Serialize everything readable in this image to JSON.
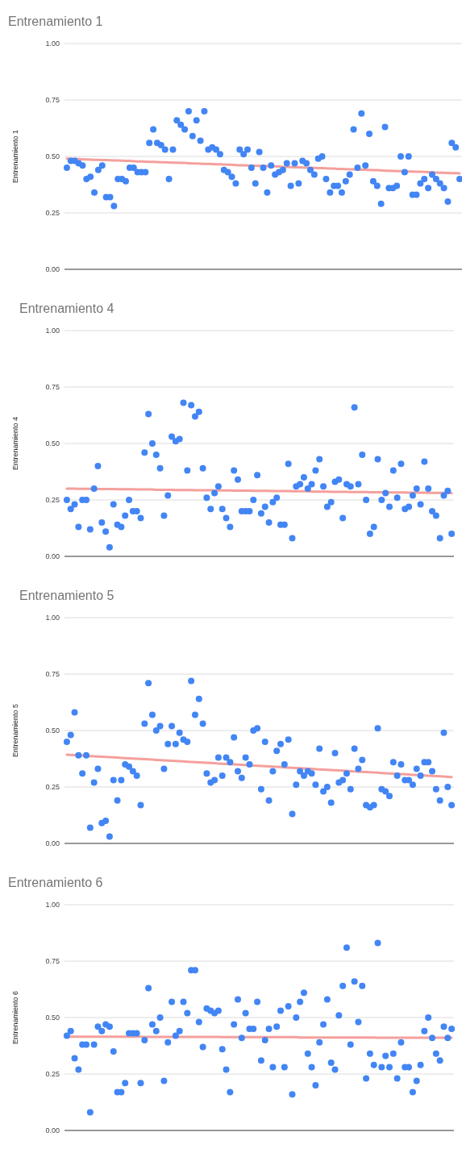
{
  "chart_data": [
    {
      "type": "scatter",
      "title": "Entrenamiento 1",
      "ylabel": "Entrenamiento 1",
      "ylim": [
        0,
        1
      ],
      "yticks": [
        {
          "value": 0,
          "label": "0.00"
        },
        {
          "value": 0.25,
          "label": "0.25"
        },
        {
          "value": 0.5,
          "label": "0.50"
        },
        {
          "value": 0.75,
          "label": "0.75"
        },
        {
          "value": 1,
          "label": "1.00"
        }
      ],
      "grid": "y",
      "tick_labels": "y",
      "marker": "circle",
      "categories": [
        null,
        null,
        null,
        null,
        null,
        null,
        null,
        null,
        null,
        null,
        null,
        null,
        null,
        null,
        null,
        null,
        null,
        null,
        null,
        null,
        null,
        null,
        null,
        null,
        null,
        null,
        null,
        null,
        null,
        null,
        null,
        null,
        null,
        null,
        null,
        null,
        null,
        null,
        null,
        null,
        null,
        null,
        null,
        null,
        null,
        null,
        null,
        null,
        null,
        null,
        null,
        null,
        null,
        null,
        null,
        null,
        null,
        null,
        null,
        null,
        null,
        null,
        null,
        null,
        null,
        null,
        null,
        null,
        null,
        null,
        null,
        null,
        null,
        null,
        null,
        null,
        null,
        null,
        null,
        null,
        null,
        null,
        null,
        null,
        null,
        null,
        null,
        null,
        null,
        null,
        null,
        null,
        null,
        null,
        null,
        null,
        null,
        null,
        null,
        null,
        null
      ],
      "series": [
        {
          "type": "line",
          "color": "#f4a09c",
          "marker": "none",
          "values": [
            0.49,
            0.489,
            0.489,
            0.488,
            0.487,
            0.487,
            0.486,
            0.485,
            0.485,
            0.484,
            0.484,
            0.483,
            0.482,
            0.482,
            0.481,
            0.48,
            0.48,
            0.479,
            0.478,
            0.478,
            0.477,
            0.476,
            0.476,
            0.475,
            0.474,
            0.474,
            0.473,
            0.472,
            0.472,
            0.471,
            0.471,
            0.47,
            0.469,
            0.469,
            0.468,
            0.467,
            0.467,
            0.466,
            0.465,
            0.465,
            0.464,
            0.463,
            0.463,
            0.462,
            0.461,
            0.461,
            0.46,
            0.459,
            0.459,
            0.458,
            0.458,
            0.457,
            0.456,
            0.456,
            0.455,
            0.454,
            0.454,
            0.453,
            0.452,
            0.452,
            0.451,
            0.45,
            0.45,
            0.449,
            0.448,
            0.448,
            0.447,
            0.446,
            0.446,
            0.445,
            0.445,
            0.444,
            0.443,
            0.443,
            0.442,
            0.441,
            0.441,
            0.44,
            0.439,
            0.439,
            0.438,
            0.437,
            0.437,
            0.436,
            0.435,
            0.435,
            0.434,
            0.433,
            0.433,
            0.432,
            0.432,
            0.431,
            0.43,
            0.43,
            0.429,
            0.428,
            0.428,
            0.427,
            0.426,
            0.426,
            0.425
          ]
        },
        {
          "type": "scatter",
          "color": "#4285f4",
          "values": [
            0.45,
            0.48,
            0.48,
            0.47,
            0.46,
            0.4,
            0.41,
            0.34,
            0.44,
            0.46,
            0.32,
            0.32,
            0.28,
            0.4,
            0.4,
            0.39,
            0.45,
            0.45,
            0.43,
            0.43,
            0.43,
            0.56,
            0.62,
            0.56,
            0.55,
            0.53,
            0.4,
            0.53,
            0.66,
            0.64,
            0.62,
            0.7,
            0.59,
            0.66,
            0.57,
            0.7,
            0.53,
            0.54,
            0.53,
            0.51,
            0.44,
            0.43,
            0.41,
            0.38,
            0.53,
            0.51,
            0.53,
            0.45,
            0.38,
            0.52,
            0.45,
            0.34,
            0.46,
            0.42,
            0.43,
            0.44,
            0.47,
            0.37,
            0.47,
            0.38,
            0.48,
            0.47,
            0.44,
            0.42,
            0.49,
            0.5,
            0.4,
            0.34,
            0.37,
            0.37,
            0.34,
            0.39,
            0.42,
            0.62,
            0.45,
            0.69,
            0.46,
            0.6,
            0.39,
            0.37,
            0.29,
            0.63,
            0.36,
            0.36,
            0.37,
            0.5,
            0.43,
            0.5,
            0.33,
            0.33,
            0.38,
            0.4,
            0.36,
            0.42,
            0.4,
            0.38,
            0.36,
            0.3,
            0.56,
            0.54,
            0.4
          ]
        }
      ]
    },
    {
      "type": "scatter",
      "title": "Entrenamiento 4",
      "ylabel": "Entrenamiento 4",
      "ylim": [
        0,
        1
      ],
      "yticks": [
        {
          "value": 0,
          "label": "0.00"
        },
        {
          "value": 0.25,
          "label": "0.25"
        },
        {
          "value": 0.5,
          "label": "0.50"
        },
        {
          "value": 0.75,
          "label": "0.75"
        },
        {
          "value": 1,
          "label": "1.00"
        }
      ],
      "grid": "y",
      "tick_labels": "y",
      "marker": "circle",
      "categories": [
        null,
        null,
        null,
        null,
        null,
        null,
        null,
        null,
        null,
        null,
        null,
        null,
        null,
        null,
        null,
        null,
        null,
        null,
        null,
        null,
        null,
        null,
        null,
        null,
        null,
        null,
        null,
        null,
        null,
        null,
        null,
        null,
        null,
        null,
        null,
        null,
        null,
        null,
        null,
        null,
        null,
        null,
        null,
        null,
        null,
        null,
        null,
        null,
        null,
        null,
        null,
        null,
        null,
        null,
        null,
        null,
        null,
        null,
        null,
        null,
        null,
        null,
        null,
        null,
        null,
        null,
        null,
        null,
        null,
        null,
        null,
        null,
        null,
        null,
        null,
        null,
        null,
        null,
        null,
        null,
        null,
        null,
        null,
        null,
        null,
        null,
        null,
        null,
        null,
        null,
        null,
        null,
        null,
        null,
        null,
        null,
        null,
        null,
        null,
        null
      ],
      "series": [
        {
          "type": "line",
          "color": "#f4a09c",
          "marker": "none",
          "values": [
            0.3,
            0.3,
            0.3,
            0.299,
            0.299,
            0.299,
            0.299,
            0.299,
            0.298,
            0.298,
            0.298,
            0.298,
            0.298,
            0.297,
            0.297,
            0.297,
            0.297,
            0.297,
            0.296,
            0.296,
            0.296,
            0.296,
            0.296,
            0.295,
            0.295,
            0.295,
            0.295,
            0.295,
            0.294,
            0.294,
            0.294,
            0.294,
            0.294,
            0.293,
            0.293,
            0.293,
            0.293,
            0.293,
            0.292,
            0.292,
            0.292,
            0.292,
            0.292,
            0.291,
            0.291,
            0.291,
            0.291,
            0.291,
            0.29,
            0.29,
            0.29,
            0.29,
            0.29,
            0.289,
            0.289,
            0.289,
            0.289,
            0.289,
            0.288,
            0.288,
            0.288,
            0.288,
            0.288,
            0.287,
            0.287,
            0.287,
            0.287,
            0.287,
            0.286,
            0.286,
            0.286,
            0.286,
            0.286,
            0.285,
            0.285,
            0.285,
            0.285,
            0.285,
            0.284,
            0.284,
            0.284,
            0.284,
            0.284,
            0.283,
            0.283,
            0.283,
            0.283,
            0.283,
            0.282,
            0.282,
            0.282,
            0.282,
            0.282,
            0.281,
            0.281,
            0.281,
            0.281,
            0.281,
            0.28,
            0.28
          ]
        },
        {
          "type": "scatter",
          "color": "#4285f4",
          "values": [
            0.25,
            0.21,
            0.23,
            0.13,
            0.25,
            0.25,
            0.12,
            0.3,
            0.4,
            0.15,
            0.11,
            0.04,
            0.23,
            0.14,
            0.13,
            0.18,
            0.25,
            0.2,
            0.2,
            0.17,
            0.46,
            0.63,
            0.5,
            0.45,
            0.39,
            0.18,
            0.27,
            0.53,
            0.51,
            0.52,
            0.68,
            0.38,
            0.67,
            0.62,
            0.64,
            0.39,
            0.26,
            0.21,
            0.28,
            0.31,
            0.21,
            0.17,
            0.13,
            0.38,
            0.34,
            0.2,
            0.2,
            0.2,
            0.25,
            0.36,
            0.19,
            0.22,
            0.15,
            0.24,
            0.26,
            0.14,
            0.14,
            0.41,
            0.08,
            0.31,
            0.32,
            0.35,
            0.3,
            0.32,
            0.38,
            0.43,
            0.31,
            0.22,
            0.24,
            0.33,
            0.34,
            0.17,
            0.32,
            0.31,
            0.66,
            0.32,
            0.45,
            0.25,
            0.1,
            0.13,
            0.43,
            0.25,
            0.28,
            0.22,
            0.38,
            0.26,
            0.41,
            0.21,
            0.22,
            0.27,
            0.3,
            0.23,
            0.42,
            0.3,
            0.2,
            0.18,
            0.08,
            0.27,
            0.29,
            0.1
          ]
        }
      ]
    },
    {
      "type": "scatter",
      "title": "Entrenamiento 5",
      "ylabel": "Entrenamiento 5",
      "ylim": [
        0,
        1
      ],
      "yticks": [
        {
          "value": 0,
          "label": "0.00"
        },
        {
          "value": 0.25,
          "label": "0.25"
        },
        {
          "value": 0.5,
          "label": "0.50"
        },
        {
          "value": 0.75,
          "label": "0.75"
        },
        {
          "value": 1,
          "label": "1.00"
        }
      ],
      "grid": "y",
      "tick_labels": "y",
      "marker": "circle",
      "categories": [
        null,
        null,
        null,
        null,
        null,
        null,
        null,
        null,
        null,
        null,
        null,
        null,
        null,
        null,
        null,
        null,
        null,
        null,
        null,
        null,
        null,
        null,
        null,
        null,
        null,
        null,
        null,
        null,
        null,
        null,
        null,
        null,
        null,
        null,
        null,
        null,
        null,
        null,
        null,
        null,
        null,
        null,
        null,
        null,
        null,
        null,
        null,
        null,
        null,
        null,
        null,
        null,
        null,
        null,
        null,
        null,
        null,
        null,
        null,
        null,
        null,
        null,
        null,
        null,
        null,
        null,
        null,
        null,
        null,
        null,
        null,
        null,
        null,
        null,
        null,
        null,
        null,
        null,
        null,
        null,
        null,
        null,
        null,
        null,
        null,
        null,
        null,
        null,
        null,
        null,
        null,
        null,
        null,
        null,
        null,
        null,
        null,
        null,
        null,
        null
      ],
      "series": [
        {
          "type": "line",
          "color": "#f4a09c",
          "marker": "none",
          "values": [
            0.393,
            0.392,
            0.391,
            0.39,
            0.389,
            0.388,
            0.387,
            0.386,
            0.385,
            0.384,
            0.383,
            0.382,
            0.381,
            0.38,
            0.379,
            0.378,
            0.377,
            0.376,
            0.375,
            0.374,
            0.373,
            0.372,
            0.371,
            0.37,
            0.369,
            0.368,
            0.367,
            0.366,
            0.365,
            0.364,
            0.363,
            0.362,
            0.361,
            0.36,
            0.359,
            0.358,
            0.357,
            0.356,
            0.355,
            0.354,
            0.353,
            0.352,
            0.351,
            0.35,
            0.349,
            0.348,
            0.347,
            0.346,
            0.345,
            0.344,
            0.343,
            0.342,
            0.341,
            0.34,
            0.339,
            0.338,
            0.337,
            0.336,
            0.335,
            0.334,
            0.333,
            0.332,
            0.331,
            0.33,
            0.329,
            0.328,
            0.327,
            0.326,
            0.325,
            0.324,
            0.323,
            0.322,
            0.321,
            0.32,
            0.319,
            0.318,
            0.317,
            0.316,
            0.315,
            0.314,
            0.313,
            0.312,
            0.311,
            0.31,
            0.309,
            0.308,
            0.307,
            0.306,
            0.305,
            0.304,
            0.303,
            0.302,
            0.301,
            0.3,
            0.299,
            0.298,
            0.297,
            0.296,
            0.295,
            0.294
          ]
        },
        {
          "type": "scatter",
          "color": "#4285f4",
          "values": [
            0.45,
            0.48,
            0.58,
            0.39,
            0.31,
            0.39,
            0.07,
            0.27,
            0.33,
            0.09,
            0.1,
            0.03,
            0.28,
            0.19,
            0.28,
            0.35,
            0.34,
            0.32,
            0.3,
            0.17,
            0.53,
            0.71,
            0.57,
            0.5,
            0.52,
            0.33,
            0.44,
            0.52,
            0.44,
            0.49,
            0.46,
            0.45,
            0.72,
            0.57,
            0.64,
            0.53,
            0.31,
            0.27,
            0.28,
            0.38,
            0.3,
            0.38,
            0.36,
            0.47,
            0.32,
            0.29,
            0.38,
            0.35,
            0.5,
            0.51,
            0.24,
            0.45,
            0.19,
            0.32,
            0.41,
            0.44,
            0.35,
            0.46,
            0.13,
            0.26,
            0.32,
            0.3,
            0.32,
            0.31,
            0.26,
            0.42,
            0.23,
            0.25,
            0.18,
            0.4,
            0.27,
            0.28,
            0.31,
            0.24,
            0.42,
            0.33,
            0.37,
            0.17,
            0.16,
            0.17,
            0.51,
            0.24,
            0.23,
            0.21,
            0.36,
            0.3,
            0.35,
            0.28,
            0.28,
            0.26,
            0.33,
            0.3,
            0.36,
            0.36,
            0.32,
            0.24,
            0.19,
            0.49,
            0.25,
            0.17
          ]
        }
      ]
    },
    {
      "type": "scatter",
      "title": "Entrenamiento 6",
      "ylabel": "Entrenamiento 6",
      "ylim": [
        0,
        1
      ],
      "yticks": [
        {
          "value": 0,
          "label": "0.00"
        },
        {
          "value": 0.25,
          "label": "0.25"
        },
        {
          "value": 0.5,
          "label": "0.50"
        },
        {
          "value": 0.75,
          "label": "0.75"
        },
        {
          "value": 1,
          "label": "1.00"
        }
      ],
      "grid": "y",
      "tick_labels": "y",
      "marker": "circle",
      "categories": [
        null,
        null,
        null,
        null,
        null,
        null,
        null,
        null,
        null,
        null,
        null,
        null,
        null,
        null,
        null,
        null,
        null,
        null,
        null,
        null,
        null,
        null,
        null,
        null,
        null,
        null,
        null,
        null,
        null,
        null,
        null,
        null,
        null,
        null,
        null,
        null,
        null,
        null,
        null,
        null,
        null,
        null,
        null,
        null,
        null,
        null,
        null,
        null,
        null,
        null,
        null,
        null,
        null,
        null,
        null,
        null,
        null,
        null,
        null,
        null,
        null,
        null,
        null,
        null,
        null,
        null,
        null,
        null,
        null,
        null,
        null,
        null,
        null,
        null,
        null,
        null,
        null,
        null,
        null,
        null,
        null,
        null,
        null,
        null,
        null,
        null,
        null,
        null,
        null,
        null,
        null,
        null,
        null,
        null,
        null,
        null,
        null,
        null,
        null,
        null
      ],
      "series": [
        {
          "type": "line",
          "color": "#f4a09c",
          "marker": "none",
          "values": [
            0.415,
            0.415,
            0.415,
            0.415,
            0.415,
            0.415,
            0.415,
            0.415,
            0.415,
            0.415,
            0.415,
            0.415,
            0.415,
            0.415,
            0.415,
            0.415,
            0.415,
            0.415,
            0.415,
            0.415,
            0.414,
            0.414,
            0.414,
            0.414,
            0.414,
            0.414,
            0.414,
            0.414,
            0.414,
            0.414,
            0.414,
            0.414,
            0.414,
            0.414,
            0.414,
            0.414,
            0.414,
            0.414,
            0.414,
            0.414,
            0.413,
            0.413,
            0.413,
            0.413,
            0.413,
            0.413,
            0.413,
            0.413,
            0.413,
            0.413,
            0.413,
            0.413,
            0.413,
            0.413,
            0.413,
            0.413,
            0.413,
            0.413,
            0.413,
            0.413,
            0.412,
            0.412,
            0.412,
            0.412,
            0.412,
            0.412,
            0.412,
            0.412,
            0.412,
            0.412,
            0.412,
            0.412,
            0.412,
            0.412,
            0.412,
            0.412,
            0.412,
            0.412,
            0.412,
            0.412,
            0.411,
            0.411,
            0.411,
            0.411,
            0.411,
            0.411,
            0.411,
            0.411,
            0.411,
            0.411,
            0.411,
            0.411,
            0.411,
            0.411,
            0.411,
            0.411,
            0.411,
            0.411,
            0.411,
            0.411
          ]
        },
        {
          "type": "scatter",
          "color": "#4285f4",
          "values": [
            0.42,
            0.44,
            0.32,
            0.27,
            0.38,
            0.38,
            0.08,
            0.38,
            0.46,
            0.44,
            0.47,
            0.46,
            0.35,
            0.17,
            0.17,
            0.21,
            0.43,
            0.43,
            0.43,
            0.21,
            0.4,
            0.63,
            0.47,
            0.44,
            0.5,
            0.22,
            0.39,
            0.57,
            0.42,
            0.44,
            0.57,
            0.52,
            0.71,
            0.71,
            0.48,
            0.37,
            0.54,
            0.53,
            0.52,
            0.53,
            0.36,
            0.27,
            0.17,
            0.47,
            0.58,
            0.41,
            0.52,
            0.45,
            0.45,
            0.57,
            0.31,
            0.4,
            0.45,
            0.28,
            0.46,
            0.53,
            0.28,
            0.55,
            0.16,
            0.5,
            0.57,
            0.61,
            0.34,
            0.28,
            0.2,
            0.39,
            0.47,
            0.58,
            0.3,
            0.27,
            0.51,
            0.64,
            0.81,
            0.38,
            0.66,
            0.48,
            0.64,
            0.23,
            0.34,
            0.29,
            0.83,
            0.28,
            0.33,
            0.28,
            0.34,
            0.23,
            0.39,
            0.28,
            0.28,
            0.17,
            0.22,
            0.29,
            0.44,
            0.5,
            0.41,
            0.34,
            0.31,
            0.46,
            0.41,
            0.45
          ]
        }
      ]
    }
  ]
}
